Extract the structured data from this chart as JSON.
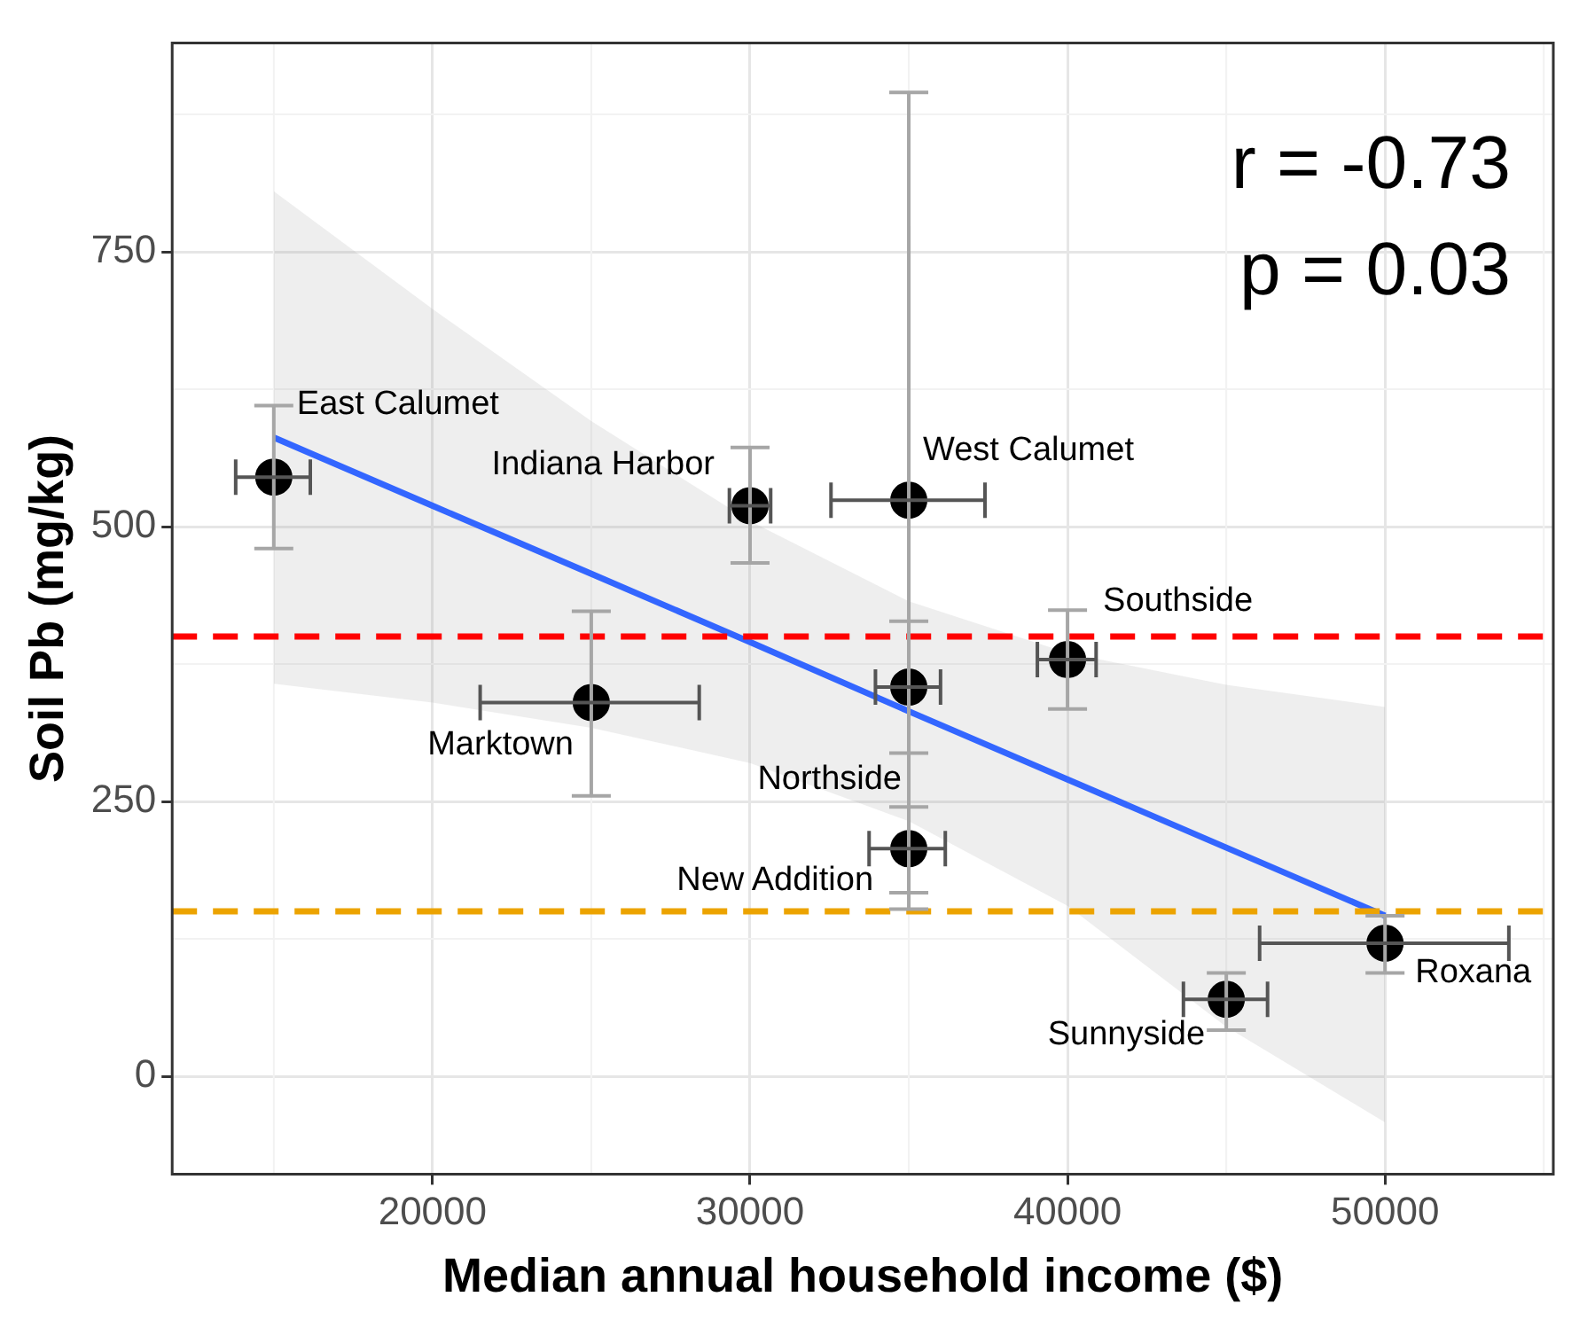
{
  "chart_data": {
    "type": "scatter",
    "xlabel": "Median annual household income ($)",
    "ylabel": "Soil Pb (mg/kg)",
    "xlim": [
      11800,
      55300
    ],
    "ylim": [
      -89,
      940
    ],
    "xticks": [
      20000,
      30000,
      40000,
      50000
    ],
    "yticks": [
      0,
      250,
      500,
      750
    ],
    "grid": true,
    "legend": false,
    "marker": "circle",
    "series": [
      {
        "type": "line",
        "marker": "none",
        "color": "#3366ff",
        "x": [
          15000,
          20000,
          25000,
          30000,
          35000,
          40000,
          45000,
          50000
        ],
        "values": [
          581,
          519,
          457,
          395,
          332,
          270,
          208,
          146
        ],
        "lower": [
          357,
          340,
          317,
          285,
          232,
          155,
          45,
          -42
        ],
        "upper": [
          805,
          698,
          596,
          505,
          432,
          385,
          356,
          336
        ]
      },
      {
        "color": "#000000",
        "x": [
          15000,
          30000,
          35000,
          40000,
          25000,
          35000,
          35000,
          45000,
          50000
        ],
        "values": [
          545,
          519,
          524,
          379,
          340,
          354,
          207,
          70,
          121
        ],
        "errors": [
          [
            480,
            610
          ],
          [
            467,
            572
          ],
          [
            152,
            895
          ],
          [
            334,
            424
          ],
          [
            255,
            423
          ],
          [
            294,
            414
          ],
          [
            167,
            245
          ],
          [
            42,
            94
          ],
          [
            94,
            146
          ]
        ],
        "xerrors": [
          [
            13800,
            16150
          ],
          [
            29350,
            30650
          ],
          [
            32550,
            37400
          ],
          [
            39050,
            40900
          ],
          [
            21500,
            28400
          ],
          [
            33950,
            36000
          ],
          [
            33750,
            36150
          ],
          [
            43650,
            46300
          ],
          [
            46050,
            53900
          ]
        ]
      }
    ],
    "ref_lines": [
      {
        "axis": "y",
        "value": 400,
        "color": "#ff0000",
        "line_style": "dashed"
      },
      {
        "axis": "y",
        "value": 150,
        "color": "#eca300",
        "line_style": "dashed"
      }
    ],
    "annotations": [
      "r = -0.73",
      "p = 0.03",
      {
        "text": "East Calumet",
        "x": 15000,
        "y": 545
      },
      {
        "text": "Indiana Harbor",
        "x": 30000,
        "y": 519
      },
      {
        "text": "West Calumet",
        "x": 35000,
        "y": 524
      },
      {
        "text": "Southside",
        "x": 40000,
        "y": 379
      },
      {
        "text": "Marktown",
        "x": 25000,
        "y": 340
      },
      {
        "text": "Northside",
        "x": 35000,
        "y": 354
      },
      {
        "text": "New Addition",
        "x": 35000,
        "y": 207
      },
      {
        "text": "Sunnyside",
        "x": 45000,
        "y": 70
      },
      {
        "text": "Roxana",
        "x": 50000,
        "y": 121
      }
    ]
  }
}
